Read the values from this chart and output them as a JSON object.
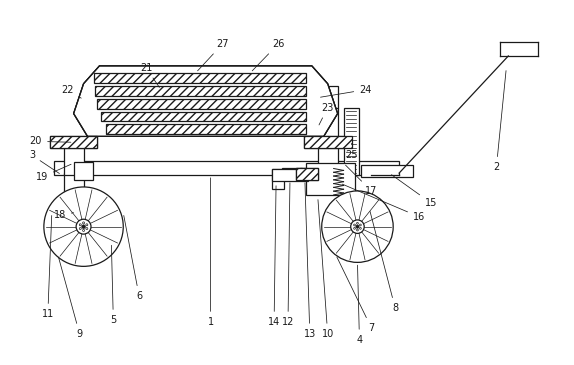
{
  "fig_width": 5.74,
  "fig_height": 3.65,
  "dpi": 100,
  "line_color": "#1a1a1a",
  "bg_color": "#ffffff",
  "lw": 0.9
}
